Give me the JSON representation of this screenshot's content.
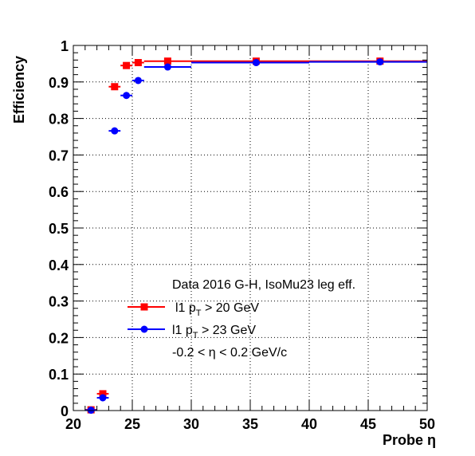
{
  "chart_data": {
    "type": "scatter",
    "xlabel": "Probe η",
    "ylabel": "Efficiency",
    "xlim": [
      20,
      50
    ],
    "ylim": [
      0,
      1
    ],
    "x_ticks": [
      "20",
      "25",
      "30",
      "35",
      "40",
      "45",
      "50"
    ],
    "y_ticks": [
      "0",
      "0.1",
      "0.2",
      "0.3",
      "0.4",
      "0.5",
      "0.6",
      "0.7",
      "0.8",
      "0.9",
      "1"
    ],
    "grid": true,
    "legend": {
      "header": "Data 2016 G-H, IsoMu23 leg eff.",
      "note": "-0.2 < η < 0.2 GeV/c",
      "placement": "center-left"
    },
    "series": [
      {
        "name_main": "l1 p",
        "name_sub": "T",
        "name_tail": " > 20 GeV",
        "color": "#ff0000",
        "marker": "square",
        "points": [
          {
            "x": 21.5,
            "xlo": 21,
            "xhi": 22,
            "y": 0.002
          },
          {
            "x": 22.5,
            "xlo": 22,
            "xhi": 23,
            "y": 0.046
          },
          {
            "x": 23.5,
            "xlo": 23,
            "xhi": 24,
            "y": 0.887
          },
          {
            "x": 24.5,
            "xlo": 24,
            "xhi": 25,
            "y": 0.945
          },
          {
            "x": 25.5,
            "xlo": 25,
            "xhi": 26,
            "y": 0.953
          },
          {
            "x": 28.0,
            "xlo": 26,
            "xhi": 30,
            "y": 0.957
          },
          {
            "x": 35.5,
            "xlo": 30,
            "xhi": 40,
            "y": 0.957
          },
          {
            "x": 46.0,
            "xlo": 40,
            "xhi": 50,
            "y": 0.957
          }
        ]
      },
      {
        "name_main": "l1 p",
        "name_sub": "T",
        "name_tail": " > 23 GeV",
        "color": "#0000ff",
        "marker": "circle",
        "points": [
          {
            "x": 21.5,
            "xlo": 21,
            "xhi": 22,
            "y": 0.001
          },
          {
            "x": 22.5,
            "xlo": 22,
            "xhi": 23,
            "y": 0.035
          },
          {
            "x": 23.5,
            "xlo": 23,
            "xhi": 24,
            "y": 0.766
          },
          {
            "x": 24.5,
            "xlo": 24,
            "xhi": 25,
            "y": 0.863
          },
          {
            "x": 25.5,
            "xlo": 25,
            "xhi": 26,
            "y": 0.904
          },
          {
            "x": 28.0,
            "xlo": 26,
            "xhi": 30,
            "y": 0.941
          },
          {
            "x": 35.5,
            "xlo": 30,
            "xhi": 40,
            "y": 0.953
          },
          {
            "x": 46.0,
            "xlo": 40,
            "xhi": 50,
            "y": 0.955
          }
        ]
      }
    ]
  }
}
